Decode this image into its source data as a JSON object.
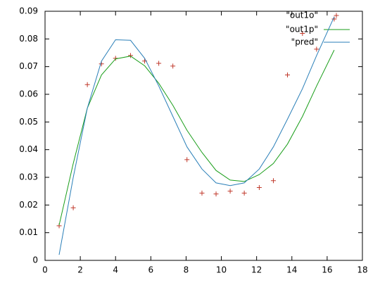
{
  "chart_data": {
    "type": "line",
    "x": [
      0.8,
      1.6,
      2.4,
      3.2,
      4.0,
      4.85,
      5.65,
      6.45,
      7.25,
      8.05,
      8.9,
      9.7,
      10.5,
      11.3,
      12.15,
      12.95,
      13.75,
      14.6,
      15.4,
      16.4
    ],
    "series": [
      {
        "name": "\"out1o\"",
        "color": "#c0392b",
        "marker": "+",
        "values": [
          0.0125,
          0.019,
          0.0635,
          0.071,
          0.073,
          0.074,
          0.072,
          0.0712,
          0.0702,
          0.0364,
          0.0243,
          0.024,
          0.025,
          0.0243,
          0.0263,
          0.0288,
          0.067,
          0.082,
          0.0763,
          0.0872
        ]
      },
      {
        "name": "\"out1p\"",
        "color": "#1a9e1a",
        "values": [
          0.0127,
          0.035,
          0.055,
          0.067,
          0.0728,
          0.0738,
          0.0703,
          0.064,
          0.056,
          0.047,
          0.039,
          0.0325,
          0.029,
          0.0285,
          0.031,
          0.035,
          0.042,
          0.052,
          0.063,
          0.076
        ]
      },
      {
        "name": "\"pred\"",
        "color": "#2a7fb8",
        "values": [
          0.002,
          0.03,
          0.055,
          0.072,
          0.0797,
          0.0795,
          0.073,
          0.063,
          0.052,
          0.041,
          0.033,
          0.028,
          0.027,
          0.028,
          0.033,
          0.041,
          0.051,
          0.062,
          0.074,
          0.088
        ]
      }
    ],
    "xlim": [
      0,
      18
    ],
    "xticks": [
      0,
      2,
      4,
      6,
      8,
      10,
      12,
      14,
      16,
      18
    ],
    "ylim": [
      0,
      0.09
    ],
    "yticks": [
      0,
      0.01,
      0.02,
      0.03,
      0.04,
      0.05,
      0.06,
      0.07,
      0.08,
      0.09
    ],
    "legend": "top-right",
    "grid": false
  }
}
